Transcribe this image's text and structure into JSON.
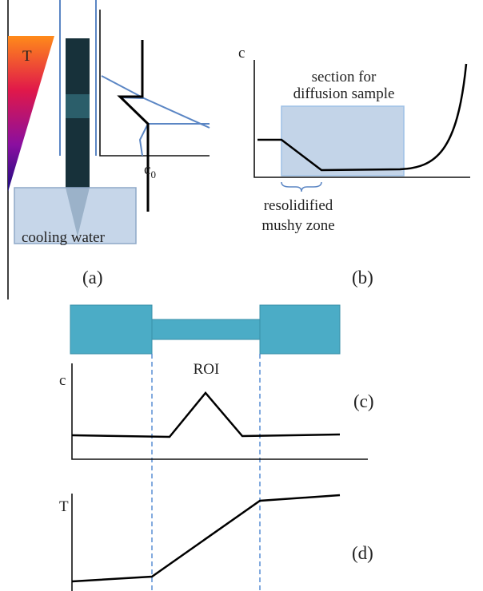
{
  "panel_a": {
    "gradient_label": "T",
    "box_label": "cooling water",
    "c0_label": {
      "base": "c",
      "sub": "0"
    },
    "caption": "(a)"
  },
  "panel_b": {
    "axis_label": "c",
    "box_label": [
      "section for",
      "diffusion sample"
    ],
    "brace_label": [
      "resolidified",
      "mushy zone"
    ],
    "caption": "(b)"
  },
  "panel_c": {
    "region_label": "ROI",
    "axis_label": "c",
    "caption": "(c)"
  },
  "panel_d": {
    "axis_label": "T",
    "caption": "(d)"
  }
}
